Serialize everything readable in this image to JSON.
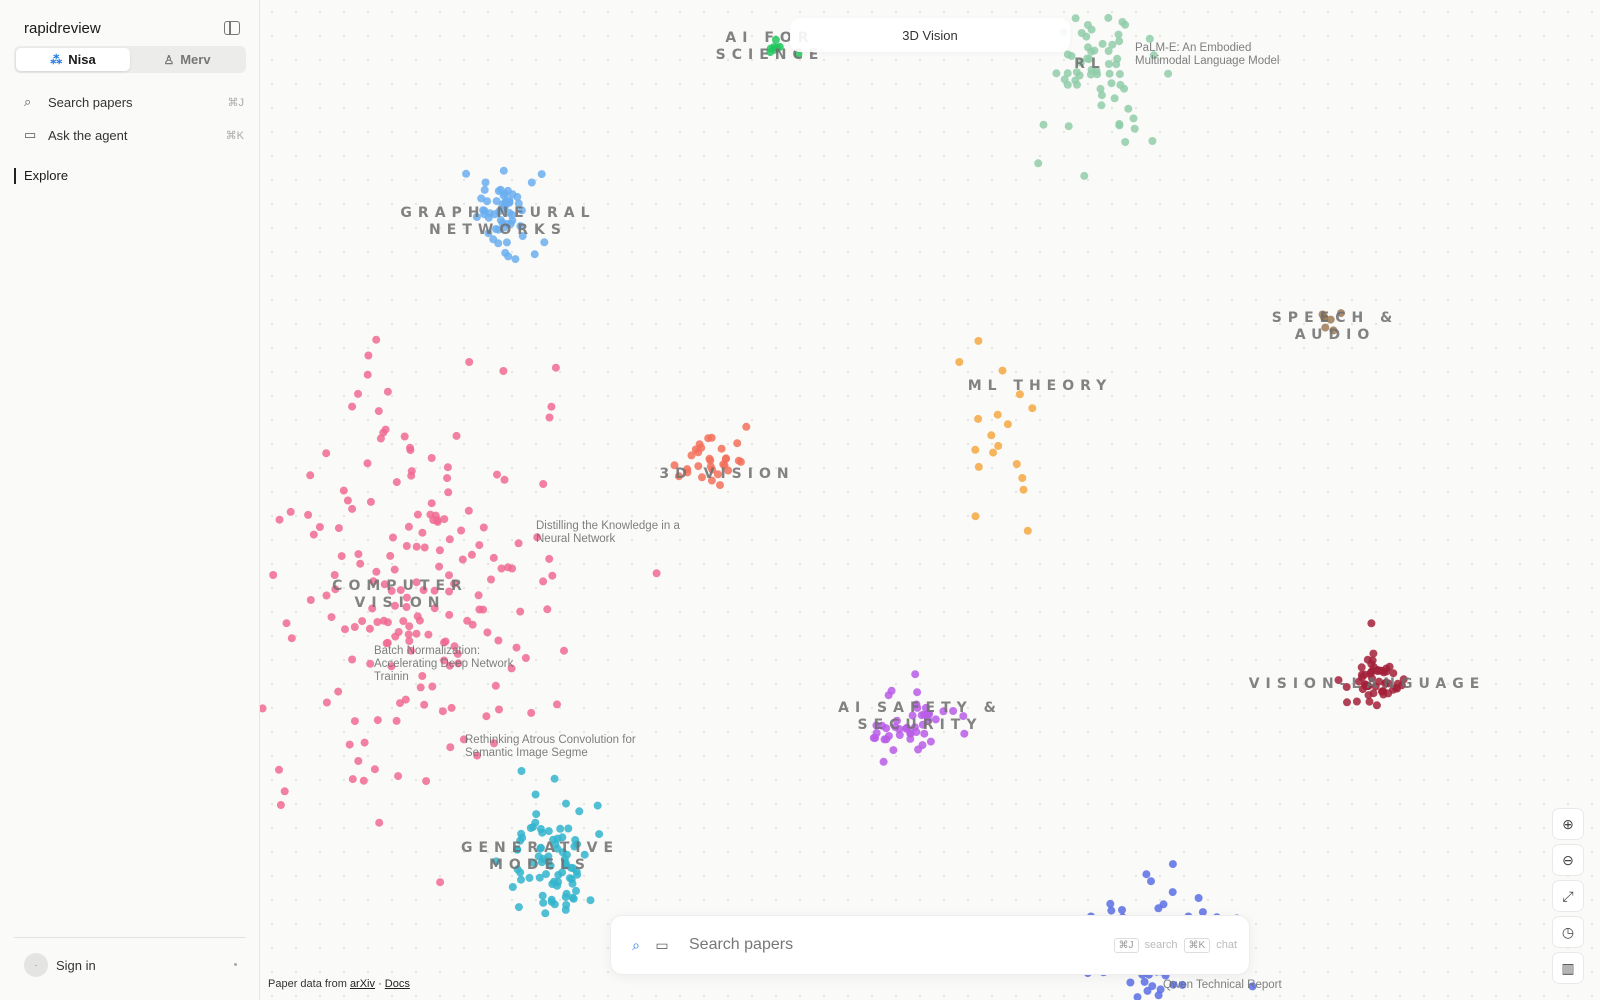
{
  "app": {
    "title": "rapidreview"
  },
  "sidebar": {
    "modes": [
      {
        "label": "Nisa",
        "icon": "agent-icon",
        "active": true
      },
      {
        "label": "Merv",
        "icon": "person-icon",
        "active": false
      }
    ],
    "items": [
      {
        "label": "Search papers",
        "shortcut": "⌘J",
        "icon": "search-icon"
      },
      {
        "label": "Ask the agent",
        "shortcut": "⌘K",
        "icon": "chat-icon"
      }
    ],
    "explore_label": "Explore",
    "signin_label": "Sign in"
  },
  "map": {
    "active_cluster": "3D Vision",
    "clusters": [
      {
        "lines": [
          "AI FOR",
          "SCIENCE"
        ],
        "color": "#22c55e"
      },
      {
        "lines": [
          "RL"
        ],
        "color": "#8fcca9"
      },
      {
        "lines": [
          "GRAPH NEURAL",
          "NETWORKS"
        ],
        "color": "#6aaef0"
      },
      {
        "lines": [
          "SPEECH &",
          "AUDIO"
        ],
        "color": "#9c7a55"
      },
      {
        "lines": [
          "ML THEORY"
        ],
        "color": "#f5a742"
      },
      {
        "lines": [
          "3D VISION"
        ],
        "color": "#f2705a"
      },
      {
        "lines": [
          "COMPUTER",
          "VISION"
        ],
        "color": "#f06a93"
      },
      {
        "lines": [
          "VISION-LANGUAGE"
        ],
        "color": "#a3213a"
      },
      {
        "lines": [
          "AI SAFETY &",
          "SECURITY"
        ],
        "color": "#b85ce8"
      },
      {
        "lines": [
          "GENERATIVE",
          "MODELS"
        ],
        "color": "#33b4cc"
      },
      {
        "lines": [],
        "color": "#5b6fe6"
      }
    ],
    "papers": [
      {
        "lines": [
          "PaLM-E: An Embodied",
          "Multimodal Language Model"
        ]
      },
      {
        "lines": [
          "Distilling the Knowledge in a",
          "Neural Network"
        ]
      },
      {
        "lines": [
          "Batch Normalization:",
          "Accelerating Deep Network",
          "Trainin"
        ]
      },
      {
        "lines": [
          "Rethinking Atrous Convolution for",
          "Semantic Image Segme"
        ]
      },
      {
        "lines": [
          "Qwen Technical Report"
        ]
      }
    ]
  },
  "search": {
    "placeholder": "Search papers",
    "hint_search_key": "⌘J",
    "hint_search": "search",
    "hint_chat_key": "⌘K",
    "hint_chat": "chat"
  },
  "zoom_controls": [
    {
      "name": "zoom-in-icon",
      "glyph": "⊕"
    },
    {
      "name": "zoom-out-icon",
      "glyph": "⊖"
    },
    {
      "name": "fit-view-icon",
      "glyph": "⤢"
    },
    {
      "name": "history-icon",
      "glyph": "◷"
    },
    {
      "name": "map-icon",
      "glyph": "▥"
    }
  ],
  "footer": {
    "prefix": "Paper data from",
    "source_link": "arXiv",
    "separator": "·",
    "docs_link": "Docs"
  }
}
